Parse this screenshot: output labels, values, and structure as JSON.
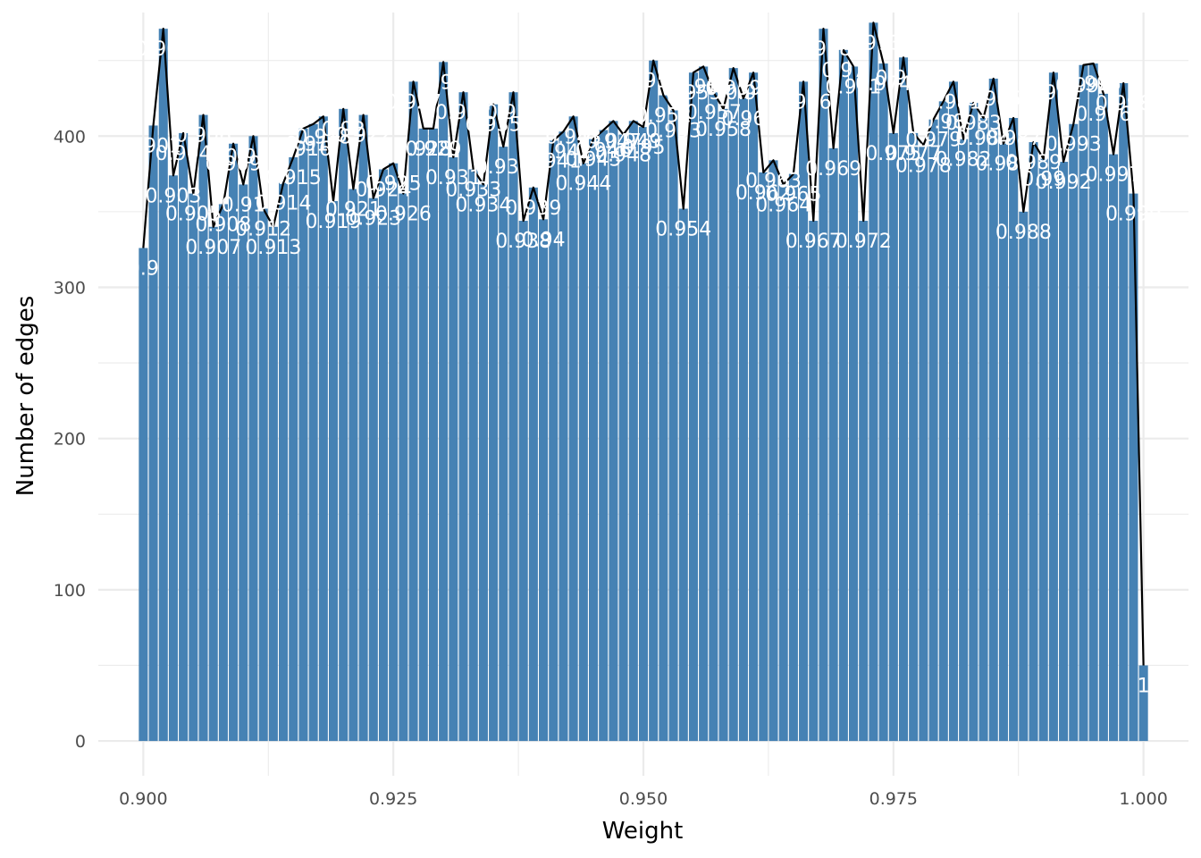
{
  "chart_data": {
    "type": "bar",
    "title": "",
    "xlabel": "Weight",
    "ylabel": "Number of edges",
    "xlim": [
      0.8955,
      1.0045
    ],
    "ylim": [
      -23,
      490
    ],
    "x_ticks": [
      0.9,
      0.925,
      0.95,
      0.975,
      1.0
    ],
    "x_tick_labels": [
      "0.900",
      "0.925",
      "0.950",
      "0.975",
      "1.000"
    ],
    "y_ticks": [
      0,
      100,
      200,
      300,
      400
    ],
    "y_tick_labels": [
      "0",
      "100",
      "200",
      "300",
      "400"
    ],
    "grid": true,
    "legend": "none",
    "bar_color": "#4682b4",
    "line_color": "#000000",
    "label_color": "#ffffff",
    "x": [
      0.9,
      0.901,
      0.902,
      0.903,
      0.904,
      0.905,
      0.906,
      0.907,
      0.908,
      0.909,
      0.91,
      0.911,
      0.912,
      0.913,
      0.914,
      0.915,
      0.916,
      0.917,
      0.918,
      0.919,
      0.92,
      0.921,
      0.922,
      0.923,
      0.924,
      0.925,
      0.926,
      0.927,
      0.928,
      0.929,
      0.93,
      0.931,
      0.932,
      0.933,
      0.934,
      0.935,
      0.936,
      0.937,
      0.938,
      0.939,
      0.94,
      0.941,
      0.942,
      0.943,
      0.944,
      0.945,
      0.946,
      0.947,
      0.948,
      0.949,
      0.95,
      0.951,
      0.952,
      0.953,
      0.954,
      0.955,
      0.956,
      0.957,
      0.958,
      0.959,
      0.96,
      0.961,
      0.962,
      0.963,
      0.964,
      0.965,
      0.966,
      0.967,
      0.968,
      0.969,
      0.97,
      0.971,
      0.972,
      0.973,
      0.974,
      0.975,
      0.976,
      0.977,
      0.978,
      0.979,
      0.98,
      0.981,
      0.982,
      0.983,
      0.984,
      0.985,
      0.986,
      0.987,
      0.988,
      0.989,
      0.99,
      0.991,
      0.992,
      0.993,
      0.994,
      0.995,
      0.996,
      0.997,
      0.998,
      0.999,
      1.0
    ],
    "values": [
      326,
      407,
      471,
      374,
      402,
      362,
      414,
      340,
      355,
      395,
      368,
      400,
      352,
      340,
      369,
      386,
      405,
      408,
      413,
      357,
      418,
      365,
      414,
      359,
      378,
      382,
      362,
      436,
      405,
      405,
      449,
      386,
      429,
      378,
      368,
      421,
      393,
      429,
      344,
      366,
      345,
      397,
      403,
      413,
      382,
      398,
      404,
      410,
      401,
      410,
      406,
      450,
      427,
      417,
      352,
      442,
      446,
      429,
      418,
      445,
      425,
      442,
      376,
      384,
      368,
      375,
      436,
      344,
      471,
      392,
      457,
      446,
      344,
      475,
      448,
      402,
      452,
      402,
      394,
      411,
      423,
      436,
      398,
      422,
      412,
      438,
      395,
      412,
      350,
      396,
      385,
      442,
      383,
      408,
      447,
      448,
      428,
      388,
      435,
      362,
      50
    ],
    "data_labels": [
      "0.9",
      "0.901",
      "0.902",
      "0.903",
      "0.904",
      "0.905",
      "0.906",
      "0.907",
      "0.908",
      "0.909",
      "0.91",
      "0.911",
      "0.912",
      "0.913",
      "0.914",
      "0.915",
      "0.916",
      "0.917",
      "0.918",
      "0.919",
      "0.92",
      "0.921",
      "0.922",
      "0.923",
      "0.924",
      "0.925",
      "0.926",
      "0.927",
      "0.928",
      "0.929",
      "0.93",
      "0.931",
      "0.932",
      "0.933",
      "0.934",
      "0.935",
      "0.936",
      "0.937",
      "0.938",
      "0.939",
      "0.94",
      "0.941",
      "0.942",
      "0.943",
      "0.944",
      "0.945",
      "0.946",
      "0.947",
      "0.948",
      "0.949",
      "0.95",
      "0.951",
      "0.952",
      "0.953",
      "0.954",
      "0.955",
      "0.956",
      "0.957",
      "0.958",
      "0.959",
      "0.96",
      "0.961",
      "0.962",
      "0.963",
      "0.964",
      "0.965",
      "0.966",
      "0.967",
      "0.968",
      "0.969",
      "0.97",
      "0.971",
      "0.972",
      "0.973",
      "0.974",
      "0.975",
      "0.976",
      "0.977",
      "0.978",
      "0.979",
      "0.98",
      "0.981",
      "0.982",
      "0.983",
      "0.984",
      "0.985",
      "0.986",
      "0.987",
      "0.988",
      "0.989",
      "0.99",
      "0.991",
      "0.992",
      "0.993",
      "0.994",
      "0.995",
      "0.996",
      "0.997",
      "0.998",
      "0.999",
      "1"
    ]
  }
}
